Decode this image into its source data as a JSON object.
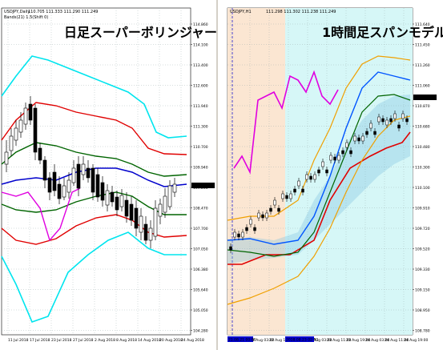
{
  "left": {
    "symbol": "USDJPY,Daily",
    "quote_line": "110.705 111.333 111.290 111.249",
    "indicator_line": "Bands(21) 1.5(Shift 0)",
    "title": "日足スーパーボリンジャー",
    "price_tag": "111.249",
    "y_ticks": [
      "114.860",
      "114.100",
      "113.400",
      "112.600",
      "111.940",
      "111.300",
      "110.700",
      "109.940",
      "109.200",
      "108.470",
      "107.700",
      "107.050",
      "106.380",
      "105.640",
      "105.050",
      "104.280"
    ],
    "x_ticks": [
      "11 Jul 2018",
      "17 Jul 2018",
      "23 Jul 2018",
      "27 Jul 2018",
      "2 Aug 2018",
      "8 Aug 2018",
      "14 Aug 2018",
      "20 Aug 2018",
      "24 Aug 2018"
    ]
  },
  "right": {
    "symbol": "USDJPY,H1",
    "quote_line": "111.298 111.302 111.238 111.249",
    "title": "1時間足スパンモデル",
    "price_tag": "111.249",
    "y_ticks": [
      "111.640",
      "111.450",
      "111.260",
      "111.060",
      "110.870",
      "110.680",
      "110.480",
      "110.300",
      "110.100",
      "109.910",
      "109.720",
      "109.520",
      "109.330",
      "109.150",
      "108.950",
      "108.780"
    ],
    "x_ticks": [
      "21 Aug 2018",
      "22 Aug 03:00",
      "22 Aug 11:00",
      "22 Aug 19:00",
      "23 Aug 03:00",
      "23 Aug 11:00",
      "23 Aug 19:00",
      "24 Aug 03:00",
      "24 Aug 11:00",
      "24 Aug 19:00"
    ],
    "highlight_dates": [
      "21.08.21 00:00",
      "2018.08.23 02:00"
    ]
  },
  "chart_data": [
    {
      "type": "line",
      "title": "日足スーパーボリンジャー",
      "series": [
        {
          "name": "",
          "color": "#00e5ee",
          "values": [
            114.2,
            114.6,
            114.5,
            114.2,
            113.8,
            113.4,
            112.9,
            112.5,
            112.2,
            112.0,
            112.0,
            112.0
          ]
        },
        {
          "name": "",
          "color": "#e00000",
          "values": [
            113.2,
            113.4,
            113.4,
            113.3,
            113.0,
            112.7,
            112.4,
            112.0,
            111.8,
            111.7,
            111.7,
            111.7
          ]
        },
        {
          "name": "",
          "color": "#006400",
          "values": [
            112.5,
            112.7,
            112.8,
            112.7,
            112.4,
            112.1,
            111.8,
            111.5,
            111.4,
            111.3,
            111.4,
            111.5
          ]
        },
        {
          "name": "",
          "color": "#0000cc",
          "values": [
            111.2,
            111.4,
            111.5,
            111.6,
            111.6,
            111.5,
            111.4,
            111.3,
            111.1,
            110.9,
            110.9,
            111.0
          ]
        }
      ]
    },
    {
      "type": "line",
      "title": "1時間足スパンモデル",
      "series": [
        {
          "name": "",
          "color": "#e000e0",
          "values": [
            110.9,
            111.2,
            111.4,
            111.5,
            111.7,
            111.8,
            111.6
          ]
        },
        {
          "name": "",
          "color": "#0055ff",
          "values": [
            110.3,
            110.4,
            110.5,
            110.8,
            111.1,
            111.4,
            111.5
          ]
        },
        {
          "name": "",
          "color": "#e00000",
          "values": [
            110.2,
            110.25,
            110.35,
            110.5,
            110.7,
            110.9,
            111.2
          ]
        }
      ]
    }
  ]
}
